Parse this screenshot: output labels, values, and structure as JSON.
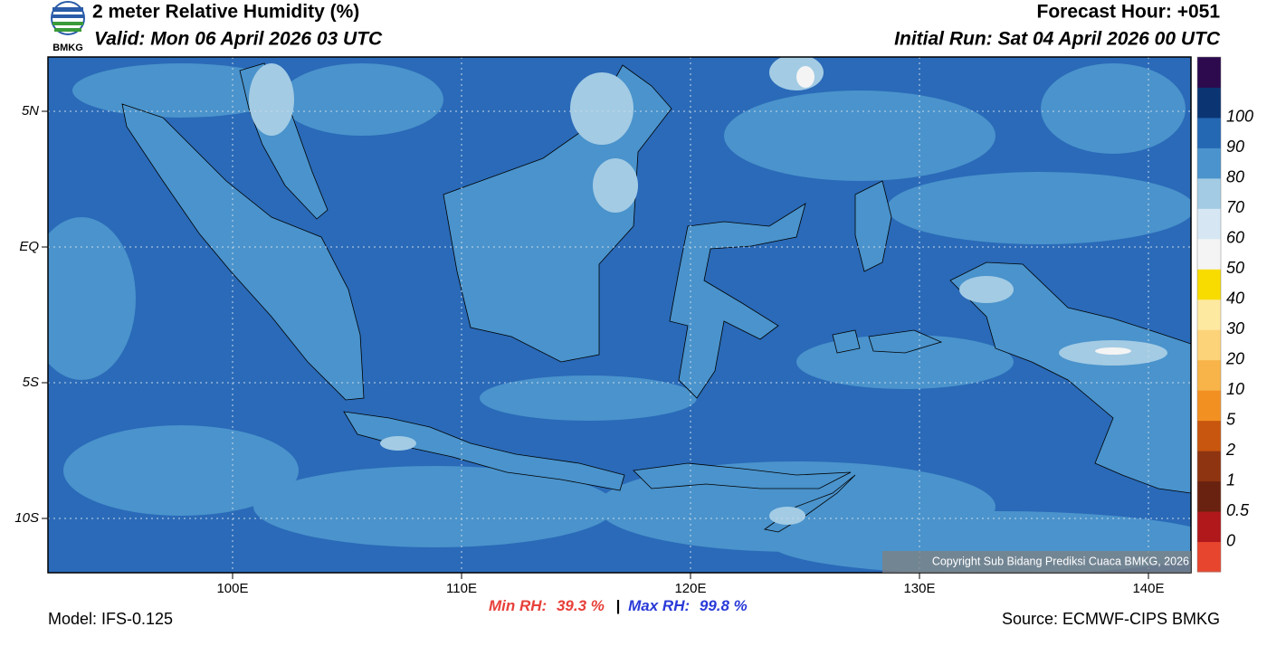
{
  "header": {
    "logo_text": "BMKG",
    "title": "2 meter Relative Humidity (%)",
    "valid": "Valid: Mon 06 April 2026 03 UTC",
    "forecast_hour": "Forecast Hour: +051",
    "initial_run": "Initial Run: Sat 04 April 2026 00 UTC"
  },
  "map": {
    "lat_labels": [
      "5N",
      "EQ",
      "5S",
      "10S"
    ],
    "lon_labels": [
      "100E",
      "110E",
      "120E",
      "130E",
      "140E"
    ],
    "copyright": "Copyright Sub Bidang Prediksi Cuaca BMKG, 2026"
  },
  "colorbar": {
    "labels": [
      0,
      0.5,
      1,
      2,
      5,
      10,
      20,
      30,
      40,
      50,
      60,
      70,
      80,
      90,
      100
    ],
    "colors": [
      "#e8452e",
      "#b0181c",
      "#6a2210",
      "#8e3410",
      "#c8560e",
      "#f39022",
      "#f8b448",
      "#fdd37a",
      "#fde9a0",
      "#f8dc00",
      "#f4f4f4",
      "#d6e7f3",
      "#a3cbe4",
      "#4a93cc",
      "#2468b4",
      "#0b3572",
      "#2d0a4e"
    ]
  },
  "footer": {
    "model": "Model: IFS-0.125",
    "min_label": "Min RH:",
    "min_value": "39.3 %",
    "separator": "|",
    "max_label": "Max RH:",
    "max_value": "99.8 %",
    "source": "Source: ECMWF-CIPS BMKG"
  }
}
